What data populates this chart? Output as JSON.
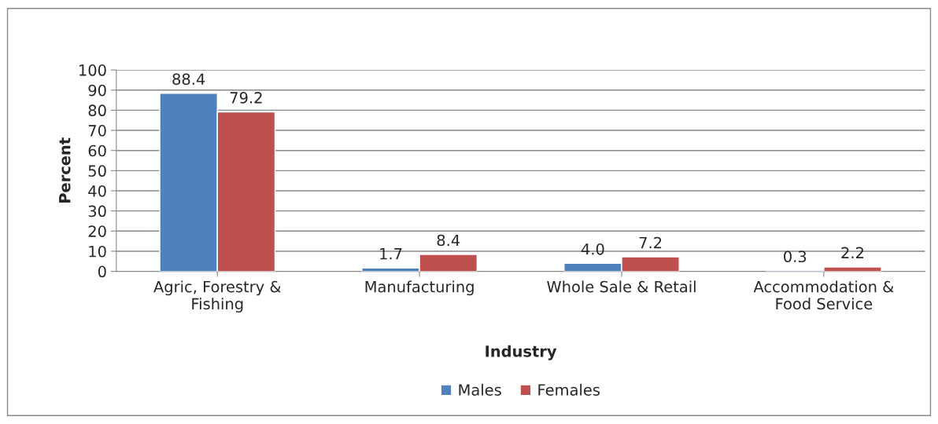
{
  "chart_data": {
    "type": "bar",
    "xlabel": "Industry",
    "ylabel": "Percent",
    "categories": [
      "Agric, Forestry &\nFishing",
      "Manufacturing",
      "Whole Sale & Retail",
      "Accommodation &\nFood Service"
    ],
    "series": [
      {
        "name": "Males",
        "color": "#4f81bd",
        "values": [
          88.4,
          1.7,
          4.0,
          0.3
        ],
        "value_labels": [
          "88.4",
          "1.7",
          "4.0",
          "0.3"
        ]
      },
      {
        "name": "Females",
        "color": "#c0504d",
        "values": [
          79.2,
          8.4,
          7.2,
          2.2
        ],
        "value_labels": [
          "79.2",
          "8.4",
          "7.2",
          "2.2"
        ]
      }
    ],
    "ylim": [
      0,
      100
    ],
    "yticks": [
      0,
      10,
      20,
      30,
      40,
      50,
      60,
      70,
      80,
      90,
      100
    ],
    "grid": "y",
    "legend": "bottom"
  }
}
